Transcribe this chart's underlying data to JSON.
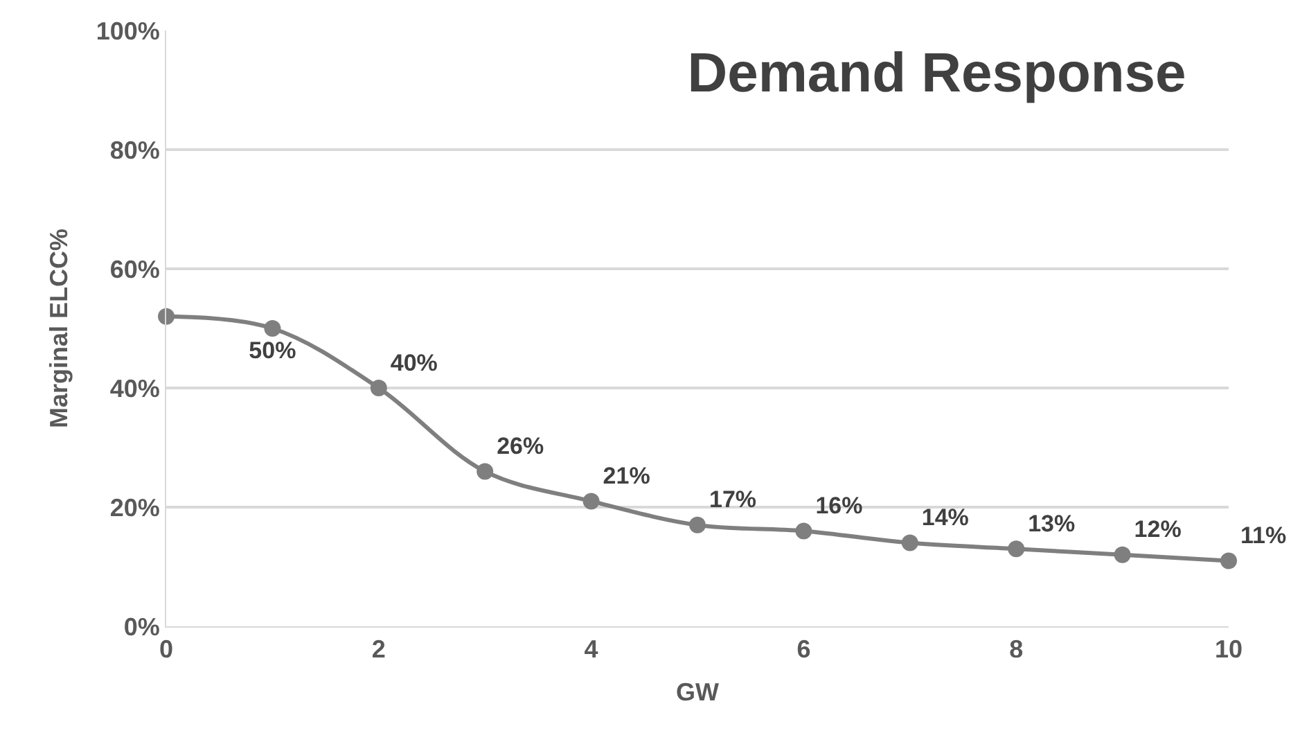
{
  "chart_data": {
    "type": "line",
    "title": "Demand Response",
    "xlabel": "GW",
    "ylabel": "Marginal ELCC%",
    "x": [
      0,
      1,
      2,
      3,
      4,
      5,
      6,
      7,
      8,
      9,
      10
    ],
    "series": [
      {
        "color": "#7f7f7f",
        "values": [
          52,
          50,
          40,
          26,
          21,
          17,
          16,
          14,
          13,
          12,
          11
        ],
        "value_labels": [
          null,
          "50%",
          "40%",
          "26%",
          "21%",
          "17%",
          "16%",
          "14%",
          "13%",
          "12%",
          "11%"
        ]
      }
    ],
    "xlim": [
      0,
      10
    ],
    "xticks": [
      0,
      2,
      4,
      6,
      8,
      10
    ],
    "ylim": [
      0,
      100
    ],
    "yticks": [
      {
        "value": 0,
        "label": "0%"
      },
      {
        "value": 20,
        "label": "20%"
      },
      {
        "value": 40,
        "label": "40%"
      },
      {
        "value": 60,
        "label": "60%"
      },
      {
        "value": 80,
        "label": "80%"
      },
      {
        "value": 100,
        "label": "100%"
      }
    ],
    "grid": "y",
    "marker": "circle",
    "line_style": "solid"
  }
}
